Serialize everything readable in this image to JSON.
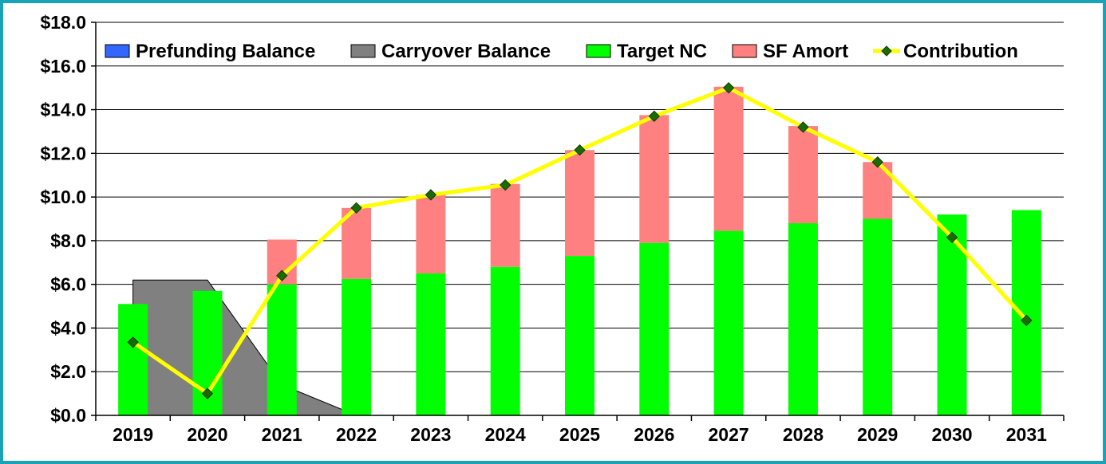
{
  "chart_data": {
    "type": "bar",
    "title": "",
    "xlabel": "",
    "ylabel": "",
    "categories": [
      "2019",
      "2020",
      "2021",
      "2022",
      "2023",
      "2024",
      "2025",
      "2026",
      "2027",
      "2028",
      "2029",
      "2030",
      "2031"
    ],
    "ylim": [
      0,
      18
    ],
    "yticks": [
      0,
      2,
      4,
      6,
      8,
      10,
      12,
      14,
      16,
      18
    ],
    "ytick_labels": [
      "$0.0",
      "$2.0",
      "$4.0",
      "$6.0",
      "$8.0",
      "$10.0",
      "$12.0",
      "$14.0",
      "$16.0",
      "$18.0"
    ],
    "grid": "horizontal",
    "legend_position": "top",
    "series": [
      {
        "name": "Prefunding Balance",
        "kind": "area",
        "color": "#3366ff",
        "values": [
          0,
          0,
          0,
          0,
          0,
          0,
          0,
          0,
          0,
          0,
          0,
          0,
          0
        ]
      },
      {
        "name": "Carryover Balance",
        "kind": "area",
        "color": "#808080",
        "values": [
          6.2,
          6.2,
          1.4,
          0,
          0,
          0,
          0,
          0,
          0,
          0,
          0,
          0,
          0
        ]
      },
      {
        "name": "Target NC",
        "kind": "stacked-bar",
        "color": "#00ff00",
        "values": [
          5.1,
          5.7,
          6.0,
          6.25,
          6.5,
          6.8,
          7.3,
          7.9,
          8.45,
          8.8,
          9.0,
          9.2,
          9.4
        ]
      },
      {
        "name": "SF Amort",
        "kind": "stacked-bar",
        "color": "#ff8080",
        "values": [
          0,
          0,
          2.05,
          3.25,
          3.6,
          3.8,
          4.85,
          5.85,
          6.6,
          4.45,
          2.6,
          0,
          0
        ]
      },
      {
        "name": "Contribution",
        "kind": "line",
        "color": "#ffff00",
        "marker_color": "#1a6b00",
        "values": [
          3.35,
          1.0,
          6.4,
          9.5,
          10.1,
          10.55,
          12.15,
          13.7,
          15.0,
          13.2,
          11.6,
          8.15,
          4.35
        ]
      }
    ]
  },
  "colors": {
    "frame": "#1aa3b8",
    "grid": "#000000",
    "marker_outline": "#0d3d00"
  }
}
